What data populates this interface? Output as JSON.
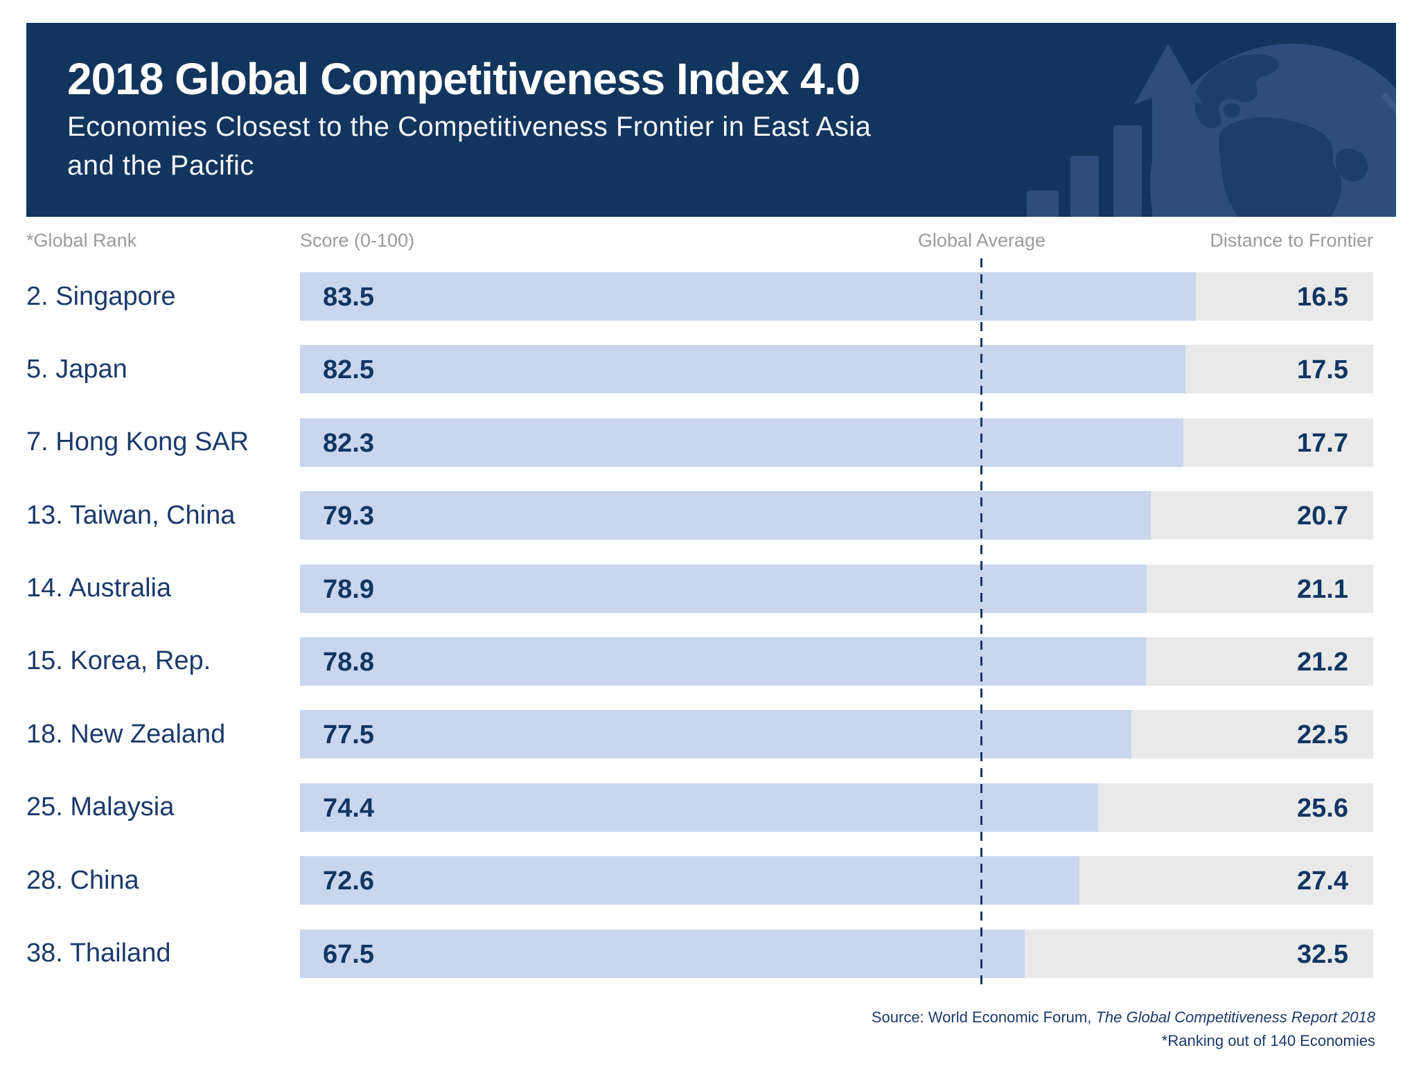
{
  "header": {
    "title": "2018 Global Competitiveness Index 4.0",
    "subtitle_line1": "Economies Closest to the Competitiveness Frontier in East Asia",
    "subtitle_line2": "and the Pacific"
  },
  "columns": {
    "rank": "*Global Rank",
    "score": "Score (0-100)",
    "global_average": "Global Average",
    "distance": "Distance to Frontier"
  },
  "rows": [
    {
      "label": "2. Singapore",
      "score": "83.5",
      "distance": "16.5"
    },
    {
      "label": "5. Japan",
      "score": "82.5",
      "distance": "17.5"
    },
    {
      "label": "7. Hong Kong SAR",
      "score": "82.3",
      "distance": "17.7"
    },
    {
      "label": "13. Taiwan, China",
      "score": "79.3",
      "distance": "20.7"
    },
    {
      "label": "14. Australia",
      "score": "78.9",
      "distance": "21.1"
    },
    {
      "label": "15. Korea, Rep.",
      "score": "78.8",
      "distance": "21.2"
    },
    {
      "label": "18. New Zealand",
      "score": "77.5",
      "distance": "22.5"
    },
    {
      "label": "25. Malaysia",
      "score": "74.4",
      "distance": "25.6"
    },
    {
      "label": "28. China",
      "score": "72.6",
      "distance": "27.4"
    },
    {
      "label": "38. Thailand",
      "score": "67.5",
      "distance": "32.5"
    }
  ],
  "chart_data": {
    "type": "bar",
    "orientation": "horizontal",
    "title": "2018 Global Competitiveness Index 4.0",
    "subtitle": "Economies Closest to the Competitiveness Frontier in East Asia and the Pacific",
    "categories": [
      "2. Singapore",
      "5. Japan",
      "7. Hong Kong SAR",
      "13. Taiwan, China",
      "14. Australia",
      "15. Korea, Rep.",
      "18. New Zealand",
      "25. Malaysia",
      "28. China",
      "38. Thailand"
    ],
    "series": [
      {
        "name": "Score (0-100)",
        "values": [
          83.5,
          82.5,
          82.3,
          79.3,
          78.9,
          78.8,
          77.5,
          74.4,
          72.6,
          67.5
        ]
      },
      {
        "name": "Distance to Frontier",
        "values": [
          16.5,
          17.5,
          17.7,
          20.7,
          21.1,
          21.2,
          22.5,
          25.6,
          27.4,
          32.5
        ]
      }
    ],
    "xlim": [
      0,
      100
    ],
    "reference_line": {
      "label": "Global Average",
      "position_pct": 63.5,
      "style": "dashed"
    },
    "legend_position": "none",
    "grid": false,
    "colors": {
      "score_bar": "#c9d6ee",
      "distance_track": "#e9e9e9",
      "banner_navy": "#12355e",
      "value_text": "#103663",
      "label_text": "#1a3a6b",
      "column_header_gray": "#9b9b9b",
      "dashed_line": "#14365f"
    }
  },
  "footer": {
    "source_prefix": "Source:  World Economic Forum, ",
    "source_title_italic": "The Global Competitiveness Report 2018",
    "note": "*Ranking out of 140 Economies"
  }
}
